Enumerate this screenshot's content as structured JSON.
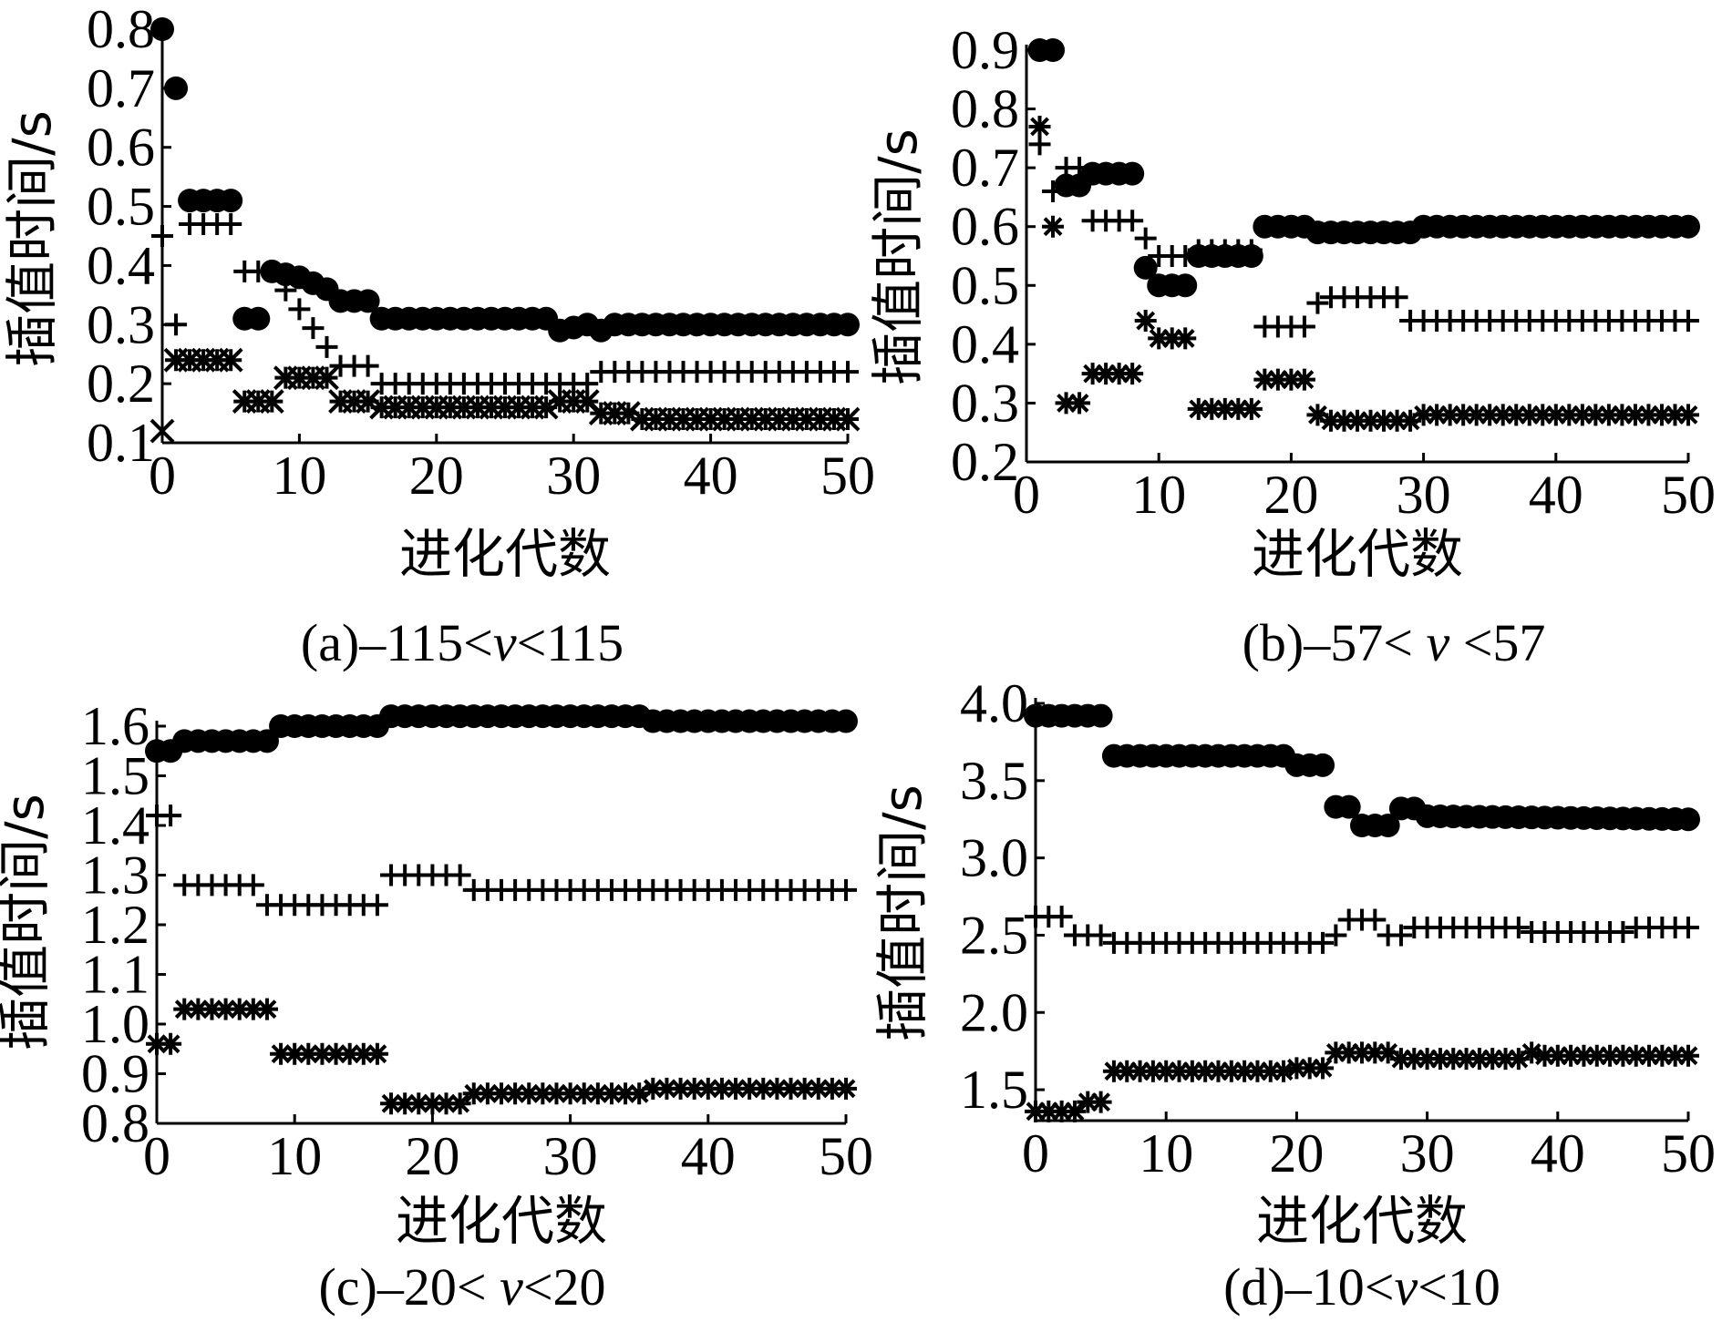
{
  "chart_data": [
    {
      "panel": "a",
      "type": "scatter",
      "caption": {
        "prefix": "(a)–115<",
        "var": "v",
        "suffix": "<115"
      },
      "xlabel": "进化代数",
      "ylabel": "插值时间/s",
      "xlim": [
        0,
        50
      ],
      "ylim": [
        0.1,
        0.8
      ],
      "xticks": [
        "0",
        "10",
        "20",
        "30",
        "40",
        "50"
      ],
      "yticks": [
        "0.1",
        "0.2",
        "0.3",
        "0.4",
        "0.5",
        "0.6",
        "0.7",
        "0.8"
      ],
      "series": [
        {
          "marker": "circle",
          "segments": [
            [
              0,
              0.8
            ],
            [
              1,
              0.7
            ],
            [
              2,
              0.51
            ],
            [
              5,
              0.51
            ],
            [
              6,
              0.31
            ],
            [
              7,
              0.31
            ],
            [
              8,
              0.39
            ],
            [
              10,
              0.38
            ],
            [
              11,
              0.37
            ],
            [
              12,
              0.36
            ],
            [
              13,
              0.34
            ],
            [
              15,
              0.34
            ],
            [
              16,
              0.31
            ],
            [
              28,
              0.31
            ],
            [
              29,
              0.29
            ],
            [
              31,
              0.3
            ],
            [
              32,
              0.29
            ],
            [
              33,
              0.3
            ],
            [
              50,
              0.3
            ]
          ]
        },
        {
          "marker": "plus",
          "segments": [
            [
              0,
              0.45
            ],
            [
              1,
              0.3
            ],
            [
              2,
              0.47
            ],
            [
              5,
              0.47
            ],
            [
              6,
              0.39
            ],
            [
              8,
              0.39
            ],
            [
              13,
              0.23
            ],
            [
              15,
              0.23
            ],
            [
              16,
              0.2
            ],
            [
              31,
              0.2
            ],
            [
              32,
              0.22
            ],
            [
              50,
              0.22
            ]
          ]
        },
        {
          "marker": "x",
          "segments": [
            [
              0,
              0.12
            ],
            [
              1,
              0.24
            ],
            [
              5,
              0.24
            ],
            [
              6,
              0.17
            ],
            [
              8,
              0.17
            ],
            [
              9,
              0.21
            ],
            [
              12,
              0.21
            ],
            [
              13,
              0.17
            ],
            [
              15,
              0.17
            ],
            [
              16,
              0.16
            ],
            [
              28,
              0.16
            ],
            [
              29,
              0.17
            ],
            [
              31,
              0.17
            ],
            [
              32,
              0.15
            ],
            [
              34,
              0.15
            ],
            [
              35,
              0.14
            ],
            [
              50,
              0.14
            ]
          ]
        },
        {
          "marker": "star",
          "segments": [
            [
              1,
              0.24
            ],
            [
              5,
              0.24
            ],
            [
              6,
              0.17
            ],
            [
              8,
              0.17
            ],
            [
              9,
              0.21
            ],
            [
              12,
              0.21
            ],
            [
              13,
              0.17
            ],
            [
              15,
              0.17
            ],
            [
              16,
              0.16
            ],
            [
              28,
              0.16
            ],
            [
              29,
              0.17
            ],
            [
              31,
              0.17
            ],
            [
              32,
              0.15
            ],
            [
              34,
              0.15
            ],
            [
              35,
              0.14
            ],
            [
              50,
              0.14
            ]
          ]
        }
      ]
    },
    {
      "panel": "b",
      "type": "scatter",
      "caption": {
        "prefix": "(b)–57< ",
        "var": "v",
        "suffix": " <57"
      },
      "xlabel": "进化代数",
      "ylabel": "插值时间/s",
      "xlim": [
        0,
        50
      ],
      "ylim": [
        0.2,
        0.9
      ],
      "xticks": [
        "0",
        "10",
        "20",
        "30",
        "40",
        "50"
      ],
      "yticks": [
        "0.2",
        "0.3",
        "0.4",
        "0.5",
        "0.6",
        "0.7",
        "0.8",
        "0.9"
      ],
      "series": [
        {
          "marker": "circle",
          "segments": [
            [
              1,
              0.9
            ],
            [
              2,
              0.9
            ],
            [
              3,
              0.67
            ],
            [
              4,
              0.67
            ],
            [
              5,
              0.69
            ],
            [
              8,
              0.69
            ],
            [
              9,
              0.53
            ],
            [
              10,
              0.5
            ],
            [
              12,
              0.5
            ],
            [
              13,
              0.55
            ],
            [
              17,
              0.55
            ],
            [
              18,
              0.6
            ],
            [
              21,
              0.6
            ],
            [
              22,
              0.59
            ],
            [
              29,
              0.59
            ],
            [
              30,
              0.6
            ],
            [
              50,
              0.6
            ]
          ]
        },
        {
          "marker": "plus",
          "segments": [
            [
              1,
              0.74
            ],
            [
              2,
              0.66
            ],
            [
              3,
              0.7
            ],
            [
              4,
              0.7
            ],
            [
              5,
              0.61
            ],
            [
              8,
              0.61
            ],
            [
              9,
              0.58
            ],
            [
              10,
              0.55
            ],
            [
              12,
              0.55
            ],
            [
              13,
              0.56
            ],
            [
              17,
              0.56
            ],
            [
              18,
              0.43
            ],
            [
              21,
              0.43
            ],
            [
              22,
              0.47
            ],
            [
              23,
              0.48
            ],
            [
              28,
              0.48
            ],
            [
              29,
              0.44
            ],
            [
              50,
              0.44
            ]
          ]
        },
        {
          "marker": "star",
          "segments": [
            [
              1,
              0.77
            ],
            [
              2,
              0.6
            ],
            [
              3,
              0.3
            ],
            [
              4,
              0.3
            ],
            [
              5,
              0.35
            ],
            [
              8,
              0.35
            ],
            [
              9,
              0.44
            ],
            [
              10,
              0.41
            ],
            [
              12,
              0.41
            ],
            [
              13,
              0.29
            ],
            [
              17,
              0.29
            ],
            [
              18,
              0.34
            ],
            [
              21,
              0.34
            ],
            [
              22,
              0.28
            ],
            [
              23,
              0.27
            ],
            [
              29,
              0.27
            ],
            [
              30,
              0.28
            ],
            [
              50,
              0.28
            ]
          ]
        }
      ]
    },
    {
      "panel": "c",
      "type": "scatter",
      "caption": {
        "prefix": "(c)–20< ",
        "var": "v",
        "suffix": "<20"
      },
      "xlabel": "进化代数",
      "ylabel": "插值时间/s",
      "xlim": [
        0,
        50
      ],
      "ylim": [
        0.8,
        1.6
      ],
      "xticks": [
        "0",
        "10",
        "20",
        "30",
        "40",
        "50"
      ],
      "yticks": [
        "0.8",
        "0.9",
        "1.0",
        "1.1",
        "1.2",
        "1.3",
        "1.4",
        "1.5",
        "1.6"
      ],
      "series": [
        {
          "marker": "circle",
          "segments": [
            [
              0,
              1.55
            ],
            [
              1,
              1.55
            ],
            [
              2,
              1.57
            ],
            [
              8,
              1.57
            ],
            [
              9,
              1.6
            ],
            [
              16,
              1.6
            ],
            [
              17,
              1.62
            ],
            [
              35,
              1.62
            ],
            [
              36,
              1.61
            ],
            [
              50,
              1.61
            ]
          ]
        },
        {
          "marker": "plus",
          "segments": [
            [
              0,
              1.42
            ],
            [
              1,
              1.42
            ],
            [
              2,
              1.28
            ],
            [
              7,
              1.28
            ],
            [
              8,
              1.24
            ],
            [
              16,
              1.24
            ],
            [
              17,
              1.3
            ],
            [
              22,
              1.3
            ],
            [
              23,
              1.27
            ],
            [
              50,
              1.27
            ]
          ]
        },
        {
          "marker": "star",
          "segments": [
            [
              0,
              0.96
            ],
            [
              1,
              0.96
            ],
            [
              2,
              1.03
            ],
            [
              8,
              1.03
            ],
            [
              9,
              0.94
            ],
            [
              16,
              0.94
            ],
            [
              17,
              0.84
            ],
            [
              22,
              0.84
            ],
            [
              23,
              0.86
            ],
            [
              27,
              0.86
            ],
            [
              28,
              0.86
            ],
            [
              35,
              0.86
            ],
            [
              36,
              0.87
            ],
            [
              50,
              0.87
            ]
          ]
        }
      ]
    },
    {
      "panel": "d",
      "type": "scatter",
      "caption": {
        "prefix": "(d)–10<",
        "var": "v",
        "suffix": "<10"
      },
      "xlabel": "进化代数",
      "ylabel": "插值时间/s",
      "xlim": [
        0,
        50
      ],
      "ylim": [
        1.3,
        4.0
      ],
      "xticks": [
        "0",
        "10",
        "20",
        "30",
        "40",
        "50"
      ],
      "yticks": [
        "1.5",
        "2.0",
        "2.5",
        "3.0",
        "3.5",
        "4.0"
      ],
      "series": [
        {
          "marker": "circle",
          "segments": [
            [
              0,
              3.92
            ],
            [
              5,
              3.92
            ],
            [
              6,
              3.66
            ],
            [
              19,
              3.66
            ],
            [
              20,
              3.6
            ],
            [
              22,
              3.6
            ],
            [
              23,
              3.33
            ],
            [
              24,
              3.33
            ],
            [
              25,
              3.21
            ],
            [
              27,
              3.21
            ],
            [
              28,
              3.32
            ],
            [
              29,
              3.32
            ],
            [
              30,
              3.27
            ],
            [
              50,
              3.25
            ]
          ]
        },
        {
          "marker": "plus",
          "segments": [
            [
              0,
              2.62
            ],
            [
              2,
              2.62
            ],
            [
              3,
              2.5
            ],
            [
              5,
              2.5
            ],
            [
              6,
              2.45
            ],
            [
              22,
              2.45
            ],
            [
              23,
              2.5
            ],
            [
              24,
              2.6
            ],
            [
              26,
              2.6
            ],
            [
              27,
              2.5
            ],
            [
              28,
              2.5
            ],
            [
              29,
              2.55
            ],
            [
              37,
              2.55
            ],
            [
              38,
              2.52
            ],
            [
              45,
              2.52
            ],
            [
              46,
              2.55
            ],
            [
              50,
              2.55
            ]
          ]
        },
        {
          "marker": "star",
          "segments": [
            [
              0,
              1.36
            ],
            [
              3,
              1.36
            ],
            [
              4,
              1.42
            ],
            [
              5,
              1.42
            ],
            [
              6,
              1.62
            ],
            [
              19,
              1.62
            ],
            [
              20,
              1.64
            ],
            [
              22,
              1.64
            ],
            [
              23,
              1.74
            ],
            [
              27,
              1.74
            ],
            [
              28,
              1.7
            ],
            [
              37,
              1.7
            ],
            [
              38,
              1.74
            ],
            [
              39,
              1.72
            ],
            [
              50,
              1.72
            ]
          ]
        }
      ]
    }
  ]
}
